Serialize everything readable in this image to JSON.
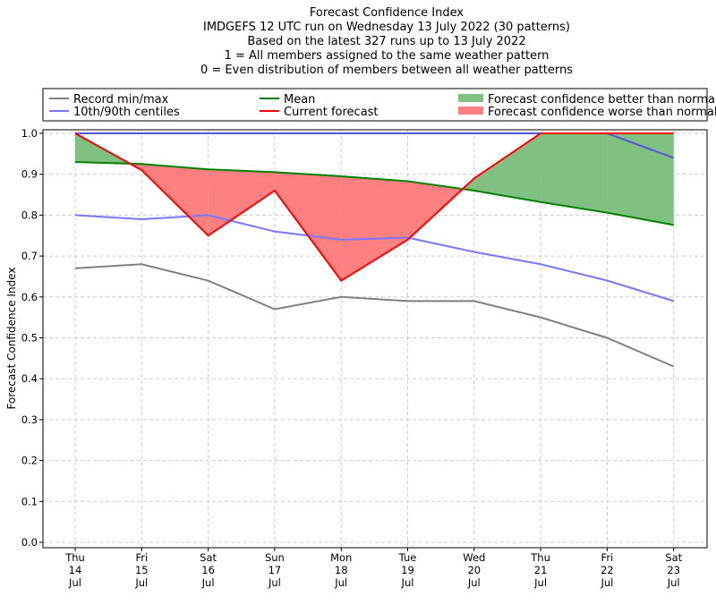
{
  "chart_data": {
    "type": "line",
    "title_lines": [
      "Forecast Confidence Index",
      "IMDGEFS 12 UTC run on Wednesday 13 July 2022 (30 patterns)",
      "Based on the latest 327 runs up to 13 July 2022",
      "1 = All members assigned to the same weather pattern",
      "0 = Even distribution of members between all weather patterns"
    ],
    "ylabel": "Forecast Confidence Index",
    "xlabel": "",
    "ylim": [
      0,
      1
    ],
    "yticks": [
      "0.0",
      "0.1",
      "0.2",
      "0.3",
      "0.4",
      "0.5",
      "0.6",
      "0.7",
      "0.8",
      "0.9",
      "1.0"
    ],
    "categories": [
      [
        "Thu",
        "14",
        "Jul"
      ],
      [
        "Fri",
        "15",
        "Jul"
      ],
      [
        "Sat",
        "16",
        "Jul"
      ],
      [
        "Sun",
        "17",
        "Jul"
      ],
      [
        "Mon",
        "18",
        "Jul"
      ],
      [
        "Tue",
        "19",
        "Jul"
      ],
      [
        "Wed",
        "20",
        "Jul"
      ],
      [
        "Thu",
        "21",
        "Jul"
      ],
      [
        "Fri",
        "22",
        "Jul"
      ],
      [
        "Sat",
        "23",
        "Jul"
      ]
    ],
    "grid": true,
    "legend": {
      "placement": "top",
      "items": [
        {
          "label": "Record min/max",
          "color": "#808080",
          "kind": "line"
        },
        {
          "label": "10th/90th centiles",
          "color": "#7777ff",
          "kind": "line"
        },
        {
          "label": "Mean",
          "color": "#008000",
          "kind": "line"
        },
        {
          "label": "Current forecast",
          "color": "#ff0000",
          "kind": "line"
        },
        {
          "label": "Forecast confidence better than normal",
          "color": "#80c080",
          "kind": "fill"
        },
        {
          "label": "Forecast confidence worse than normal",
          "color": "#ff8080",
          "kind": "fill"
        }
      ]
    },
    "series": [
      {
        "name": "Record min",
        "color": "#808080",
        "values": [
          0.67,
          0.68,
          0.64,
          0.57,
          0.6,
          0.59,
          0.59,
          0.55,
          0.5,
          0.43
        ]
      },
      {
        "name": "Record max",
        "color": "#808080",
        "values": [
          1,
          1,
          1,
          1,
          1,
          1,
          1,
          1,
          1,
          1
        ]
      },
      {
        "name": "10th centile",
        "color": "#7777ff",
        "values": [
          0.8,
          0.79,
          0.8,
          0.76,
          0.74,
          0.745,
          0.71,
          0.68,
          0.64,
          0.59
        ]
      },
      {
        "name": "90th centile",
        "color": "#5555dd",
        "values": [
          1,
          1,
          1,
          1,
          1,
          1,
          1,
          1,
          1,
          0.94
        ]
      },
      {
        "name": "Mean",
        "color": "#008000",
        "values": [
          0.93,
          0.925,
          0.912,
          0.905,
          0.895,
          0.883,
          0.86,
          0.832,
          0.806,
          0.776
        ]
      },
      {
        "name": "Current forecast",
        "color": "#ff0000",
        "values": [
          1.0,
          0.91,
          0.75,
          0.86,
          0.64,
          0.74,
          0.89,
          1.0,
          1.0,
          1.0
        ]
      }
    ]
  }
}
